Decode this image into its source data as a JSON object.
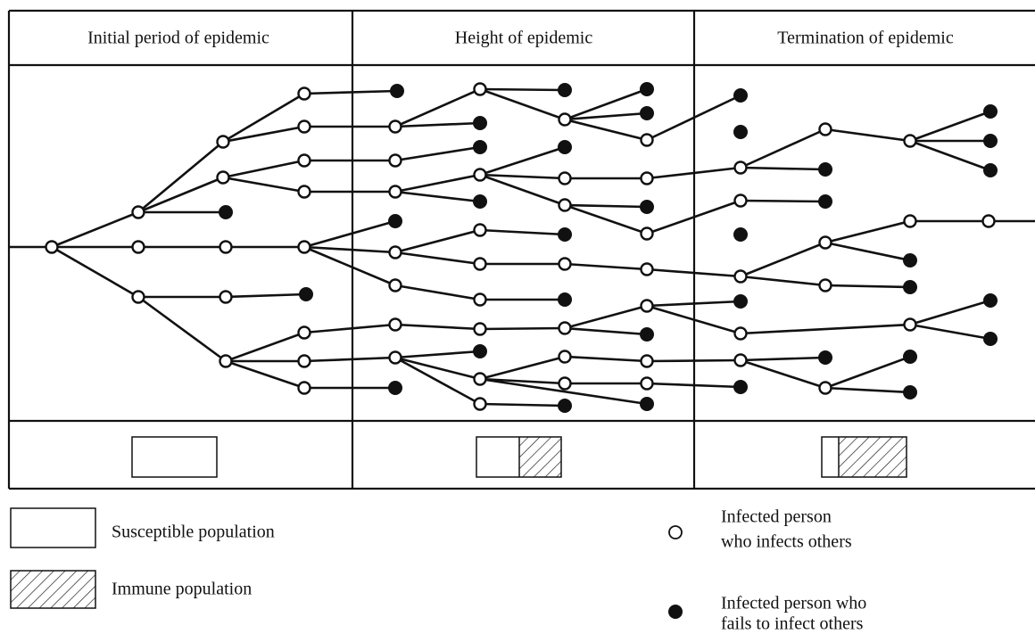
{
  "header": {
    "columns": [
      "Initial period of epidemic",
      "Height of epidemic",
      "Termination of epidemic"
    ]
  },
  "legend": {
    "susceptible": "Susceptible population",
    "immune": "Immune population",
    "infects": [
      "Infected person",
      "who infects others"
    ],
    "fails": [
      "Infected person who",
      "fails to infect others"
    ]
  }
}
